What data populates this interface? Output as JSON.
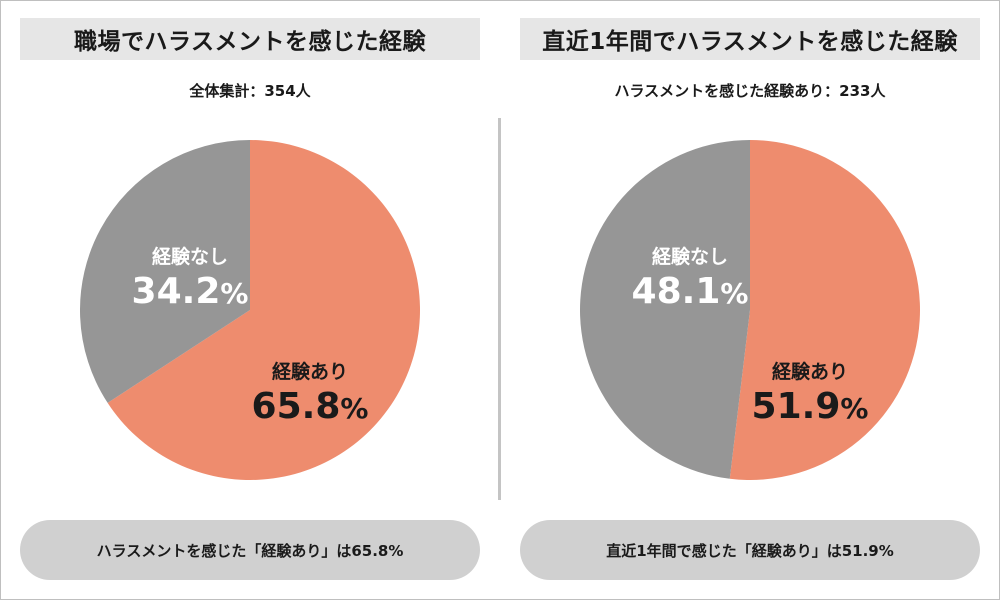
{
  "colors": {
    "yes": "#ee8c6e",
    "no": "#969696",
    "pill": "#d0d0d0",
    "title_bg": "#e6e6e6"
  },
  "panels": [
    {
      "title": "職場でハラスメントを感じた経験",
      "subtitle": "全体集計：354人",
      "summary": "ハラスメントを感じた「経験あり」は65.8%",
      "yes_label": "経験あり",
      "no_label": "経験なし",
      "yes_pct_text": "65.8",
      "no_pct_text": "34.2",
      "pct_sign": "%"
    },
    {
      "title": "直近1年間でハラスメントを感じた経験",
      "subtitle": "ハラスメントを感じた経験あり：233人",
      "summary": "直近1年間で感じた「経験あり」は51.9%",
      "yes_label": "経験あり",
      "no_label": "経験なし",
      "yes_pct_text": "51.9",
      "no_pct_text": "48.1",
      "pct_sign": "%"
    }
  ],
  "chart_data": [
    {
      "type": "pie",
      "title": "職場でハラスメントを感じた経験",
      "subtitle": "全体集計：354人",
      "slices": [
        {
          "label": "経験あり",
          "value": 65.8
        },
        {
          "label": "経験なし",
          "value": 34.2
        }
      ]
    },
    {
      "type": "pie",
      "title": "直近1年間でハラスメントを感じた経験",
      "subtitle": "ハラスメントを感じた経験あり：233人",
      "slices": [
        {
          "label": "経験あり",
          "value": 51.9
        },
        {
          "label": "経験なし",
          "value": 48.1
        }
      ]
    }
  ]
}
